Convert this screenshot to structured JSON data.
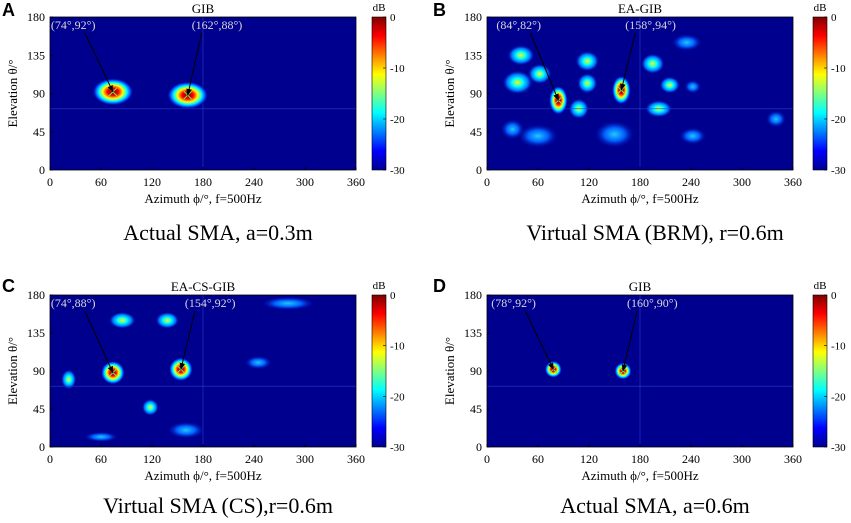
{
  "chart_data": [
    {
      "type": "heatmap",
      "panel": "A",
      "title": "GIB",
      "xlabel": "Azimuth ϕ/°, f=500Hz",
      "ylabel": "Elevation θ/°",
      "caption": "Actual SMA, a=0.3m",
      "xlim": [
        0,
        360
      ],
      "ylim": [
        0,
        180
      ],
      "xticks": [
        "0",
        "60",
        "120",
        "180",
        "240",
        "300",
        "360"
      ],
      "yticks": [
        "0",
        "45",
        "90",
        "135",
        "180"
      ],
      "colorbar": {
        "unit": "dB",
        "range": [
          -30,
          0
        ],
        "ticks": [
          "0",
          "-10",
          "-20",
          "-30"
        ]
      },
      "sources": [
        {
          "label": "(74°,92°)",
          "az": 74,
          "el": 92
        },
        {
          "label": "(162°,88°)",
          "az": 162,
          "el": 88
        }
      ]
    },
    {
      "type": "heatmap",
      "panel": "B",
      "title": "EA-GIB",
      "xlabel": "Azimuth ϕ/°, f=500Hz",
      "ylabel": "Elevation θ/°",
      "caption": "Virtual SMA (BRM), r=0.6m",
      "xlim": [
        0,
        360
      ],
      "ylim": [
        0,
        180
      ],
      "xticks": [
        "0",
        "60",
        "120",
        "180",
        "240",
        "300",
        "360"
      ],
      "yticks": [
        "0",
        "45",
        "90",
        "135",
        "180"
      ],
      "colorbar": {
        "unit": "dB",
        "range": [
          -30,
          0
        ],
        "ticks": [
          "0",
          "-10",
          "-20",
          "-30"
        ]
      },
      "sources": [
        {
          "label": "(84°,82°)",
          "az": 84,
          "el": 82
        },
        {
          "label": "(158°,94°)",
          "az": 158,
          "el": 94
        }
      ]
    },
    {
      "type": "heatmap",
      "panel": "C",
      "title": "EA-CS-GIB",
      "xlabel": "Azimuth ϕ/°, f=500Hz",
      "ylabel": "Elevation θ/°",
      "caption": "Virtual SMA (CS),r=0.6m",
      "xlim": [
        0,
        360
      ],
      "ylim": [
        0,
        180
      ],
      "xticks": [
        "0",
        "60",
        "120",
        "180",
        "240",
        "300",
        "360"
      ],
      "yticks": [
        "0",
        "45",
        "90",
        "135",
        "180"
      ],
      "colorbar": {
        "unit": "dB",
        "range": [
          -30,
          0
        ],
        "ticks": [
          "0",
          "-10",
          "-20",
          "-30"
        ]
      },
      "sources": [
        {
          "label": "(74°,88°)",
          "az": 74,
          "el": 88
        },
        {
          "label": "(154°,92°)",
          "az": 154,
          "el": 92
        }
      ]
    },
    {
      "type": "heatmap",
      "panel": "D",
      "title": "GIB",
      "xlabel": "Azimuth ϕ/°, f=500Hz",
      "ylabel": "Elevation θ/°",
      "caption": "Actual SMA, a=0.6m",
      "xlim": [
        0,
        360
      ],
      "ylim": [
        0,
        180
      ],
      "xticks": [
        "0",
        "60",
        "120",
        "180",
        "240",
        "300",
        "360"
      ],
      "yticks": [
        "0",
        "45",
        "90",
        "135",
        "180"
      ],
      "colorbar": {
        "unit": "dB",
        "range": [
          -30,
          0
        ],
        "ticks": [
          "0",
          "-10",
          "-20",
          "-30"
        ]
      },
      "sources": [
        {
          "label": "(78°,92°)",
          "az": 78,
          "el": 92
        },
        {
          "label": "(160°,90°)",
          "az": 160,
          "el": 90
        }
      ]
    }
  ]
}
